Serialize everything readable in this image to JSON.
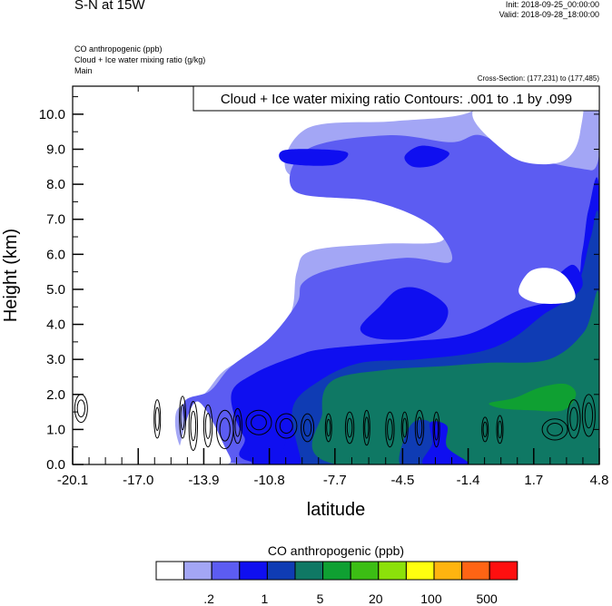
{
  "header": {
    "title": "S-N at 15W",
    "init": "Init: 2018-09-25_00:00:00",
    "valid": "Valid: 2018-09-28_18:00:00",
    "var1": "CO anthropogenic   (ppb)",
    "var2": "Cloud + Ice water mixing ratio   (g/kg)",
    "var3": "Main",
    "cross_section": "Cross-Section: (177,231) to (177,485)"
  },
  "chart_data": {
    "type": "heatmap",
    "title": "",
    "xlabel": "latitude",
    "ylabel": "Height (km)",
    "xlim": [
      -20.1,
      4.8
    ],
    "ylim": [
      0.0,
      10.8
    ],
    "x_ticks": [
      "-20.1",
      "-17.0",
      "-13.9",
      "-10.8",
      "-7.7",
      "-4.5",
      "-1.4",
      "1.7",
      "4.8"
    ],
    "y_ticks": [
      "0.0",
      "1.0",
      "2.0",
      "3.0",
      "4.0",
      "5.0",
      "6.0",
      "7.0",
      "8.0",
      "9.0",
      "10.0"
    ],
    "grid": false,
    "contour_info": "Cloud + Ice water mixing ratio Contours: .001 to .1 by .099",
    "colorbar": {
      "title": "CO anthropogenic  (ppb)",
      "colors": [
        "#ffffff",
        "#a3a6f5",
        "#5c5cf2",
        "#0f0ff0",
        "#0f3cb4",
        "#0f7864",
        "#0fa032",
        "#3cbe14",
        "#8ce10a",
        "#ffff0f",
        "#ffb40f",
        "#ff6414",
        "#ff0f0f"
      ],
      "labels": [
        ".2",
        "1",
        "5",
        "20",
        "100",
        "500"
      ]
    },
    "shading": [
      {
        "level": 1,
        "color": "#a3a6f5",
        "outline": [
          [
            -14.8,
            0.3
          ],
          [
            -15.2,
            1.5
          ],
          [
            -13.9,
            2.0
          ],
          [
            -12.9,
            2.7
          ],
          [
            -11.2,
            3.3
          ],
          [
            -9.8,
            4.3
          ],
          [
            -9.5,
            5.5
          ],
          [
            -8.8,
            6.1
          ],
          [
            -5.5,
            6.3
          ],
          [
            -2.6,
            6.4
          ],
          [
            -3.4,
            7.3
          ],
          [
            -6.2,
            8.0
          ],
          [
            -9.9,
            8.3
          ],
          [
            -9.0,
            9.6
          ],
          [
            -4.9,
            9.8
          ],
          [
            -1.6,
            10.0
          ],
          [
            0.2,
            10.6
          ],
          [
            3.7,
            10.8
          ],
          [
            4.8,
            10.8
          ],
          [
            4.8,
            0.0
          ],
          [
            -12.9,
            0.0
          ]
        ]
      },
      {
        "level": 2,
        "color": "#5c5cf2",
        "outline": [
          [
            -14.5,
            1.0
          ],
          [
            -14.8,
            1.8
          ],
          [
            -13.6,
            2.1
          ],
          [
            -12.6,
            2.8
          ],
          [
            -10.8,
            3.6
          ],
          [
            -9.5,
            4.6
          ],
          [
            -9.2,
            5.2
          ],
          [
            -7.7,
            5.6
          ],
          [
            -4.4,
            5.9
          ],
          [
            -2.2,
            5.8
          ],
          [
            -3.1,
            6.8
          ],
          [
            -5.8,
            7.5
          ],
          [
            -9.6,
            7.8
          ],
          [
            -9.0,
            9.0
          ],
          [
            -5.2,
            9.4
          ],
          [
            -2.2,
            9.2
          ],
          [
            -0.8,
            9.4
          ],
          [
            1.2,
            8.8
          ],
          [
            4.4,
            8.4
          ],
          [
            4.8,
            8.5
          ],
          [
            4.8,
            0.0
          ],
          [
            -11.8,
            0.0
          ]
        ]
      },
      {
        "level": 3,
        "color": "#0f0ff0",
        "outline": [
          [
            -12.0,
            0.8
          ],
          [
            -12.6,
            2.0
          ],
          [
            -11.5,
            2.6
          ],
          [
            -9.5,
            3.1
          ],
          [
            -8.2,
            3.3
          ],
          [
            -4.5,
            3.5
          ],
          [
            -1.5,
            3.7
          ],
          [
            1.0,
            4.4
          ],
          [
            3.5,
            4.9
          ],
          [
            4.0,
            6.1
          ],
          [
            4.3,
            7.3
          ],
          [
            4.8,
            7.7
          ],
          [
            4.8,
            0.0
          ],
          [
            -10.6,
            0.0
          ]
        ]
      },
      {
        "level": 4,
        "color": "#0f3cb4",
        "outline": [
          [
            -9.3,
            0.1
          ],
          [
            -9.7,
            1.6
          ],
          [
            -8.4,
            2.4
          ],
          [
            -6.5,
            2.9
          ],
          [
            -3.8,
            3.0
          ],
          [
            -1.0,
            3.2
          ],
          [
            0.7,
            3.6
          ],
          [
            2.2,
            4.3
          ],
          [
            3.5,
            4.8
          ],
          [
            4.0,
            5.5
          ],
          [
            4.4,
            6.5
          ],
          [
            4.8,
            6.8
          ],
          [
            4.8,
            0.0
          ],
          [
            -9.3,
            0.0
          ]
        ]
      },
      {
        "level": 5,
        "color": "#0f7864",
        "outline": [
          [
            -7.6,
            0.0
          ],
          [
            -8.3,
            1.5
          ],
          [
            -7.8,
            2.4
          ],
          [
            -5.3,
            2.7
          ],
          [
            -2.8,
            2.8
          ],
          [
            -0.5,
            2.9
          ],
          [
            2.4,
            3.0
          ],
          [
            4.1,
            3.8
          ],
          [
            4.8,
            4.8
          ],
          [
            4.8,
            0.0
          ]
        ]
      },
      {
        "level": 6,
        "color": "#0fa032",
        "outline": [
          [
            -0.4,
            1.75
          ],
          [
            0.8,
            1.9
          ],
          [
            2.0,
            2.2
          ],
          [
            3.2,
            2.3
          ],
          [
            3.7,
            2.0
          ],
          [
            3.1,
            1.55
          ],
          [
            1.6,
            1.55
          ],
          [
            0.2,
            1.6
          ]
        ]
      },
      {
        "level": 3,
        "color": "#0f0ff0",
        "outline": [
          [
            -10.2,
            1.1
          ],
          [
            -11.8,
            1.25
          ],
          [
            -11.6,
            0.0
          ],
          [
            -10.8,
            0.0
          ],
          [
            -10.1,
            0.5
          ]
        ]
      },
      {
        "level": 4,
        "color": "#0f3cb4",
        "outline": [
          [
            -4.6,
            0.0
          ],
          [
            -3.5,
            0.0
          ],
          [
            -3.1,
            0.6
          ],
          [
            -3.2,
            1.2
          ],
          [
            -4.0,
            1.2
          ],
          [
            -4.5,
            0.6
          ]
        ]
      },
      {
        "level": 3,
        "color": "#0f0ff0",
        "outline": [
          [
            -3.5,
            0.0
          ],
          [
            -1.4,
            0.0
          ],
          [
            -2.4,
            0.5
          ],
          [
            -2.4,
            1.1
          ],
          [
            -3.2,
            1.2
          ],
          [
            -3.1,
            0.6
          ]
        ]
      },
      {
        "level": 3,
        "color": "#0f0ff0",
        "outline": [
          [
            -6.5,
            3.9
          ],
          [
            -5.6,
            4.5
          ],
          [
            -4.7,
            5.0
          ],
          [
            -3.6,
            5.0
          ],
          [
            -2.4,
            4.5
          ],
          [
            -2.7,
            3.9
          ],
          [
            -4.0,
            3.6
          ],
          [
            -5.8,
            3.6
          ]
        ]
      },
      {
        "level": 3,
        "color": "#0f0ff0",
        "outline": [
          [
            -10.0,
            8.6
          ],
          [
            -10.2,
            8.95
          ],
          [
            -8.6,
            9.0
          ],
          [
            -7.1,
            8.9
          ],
          [
            -7.8,
            8.55
          ]
        ]
      },
      {
        "level": 3,
        "color": "#0f0ff0",
        "outline": [
          [
            -4.4,
            8.8
          ],
          [
            -3.6,
            9.1
          ],
          [
            -2.3,
            8.9
          ],
          [
            -3.0,
            8.55
          ],
          [
            -4.0,
            8.5
          ]
        ]
      },
      {
        "level": 3,
        "color": "#0f0ff0",
        "outline": [
          [
            2.2,
            4.9
          ],
          [
            3.5,
            5.7
          ],
          [
            4.0,
            5.1
          ],
          [
            3.0,
            4.6
          ]
        ]
      },
      {
        "level": 0,
        "color": "#ffffff",
        "outline": [
          [
            -12.8,
            0.0
          ],
          [
            -12.9,
            0.5
          ],
          [
            -14.2,
            1.8
          ],
          [
            -15.0,
            0.6
          ],
          [
            -15.0,
            0.0
          ]
        ]
      },
      {
        "level": 0,
        "color": "#ffffff",
        "outline": [
          [
            1.0,
            4.9
          ],
          [
            2.0,
            4.6
          ],
          [
            3.6,
            4.7
          ],
          [
            3.3,
            5.3
          ],
          [
            2.5,
            5.6
          ],
          [
            1.5,
            5.5
          ]
        ]
      },
      {
        "level": 0,
        "color": "#ffffff",
        "outline": [
          [
            1.5,
            8.6
          ],
          [
            3.2,
            8.7
          ],
          [
            3.9,
            9.5
          ],
          [
            3.7,
            10.8
          ],
          [
            0.2,
            10.8
          ],
          [
            -1.2,
            10.0
          ],
          [
            0.2,
            9.0
          ]
        ]
      }
    ],
    "contours": [
      {
        "cx": -19.7,
        "cy": 1.6,
        "rx": 0.3,
        "ry": 0.4
      },
      {
        "cx": -16.1,
        "cy": 1.3,
        "rx": 0.15,
        "ry": 0.55
      },
      {
        "cx": -14.9,
        "cy": 1.35,
        "rx": 0.15,
        "ry": 0.6
      },
      {
        "cx": -14.4,
        "cy": 1.1,
        "rx": 0.2,
        "ry": 0.7
      },
      {
        "cx": -13.7,
        "cy": 1.1,
        "rx": 0.2,
        "ry": 0.6
      },
      {
        "cx": -12.9,
        "cy": 1.0,
        "rx": 0.4,
        "ry": 0.55
      },
      {
        "cx": -12.3,
        "cy": 1.1,
        "rx": 0.2,
        "ry": 0.5
      },
      {
        "cx": -11.3,
        "cy": 1.2,
        "rx": 0.6,
        "ry": 0.35
      },
      {
        "cx": -10.0,
        "cy": 1.1,
        "rx": 0.5,
        "ry": 0.35
      },
      {
        "cx": -9.0,
        "cy": 1.05,
        "rx": 0.3,
        "ry": 0.4
      },
      {
        "cx": -8.0,
        "cy": 1.05,
        "rx": 0.15,
        "ry": 0.4
      },
      {
        "cx": -7.0,
        "cy": 1.05,
        "rx": 0.2,
        "ry": 0.45
      },
      {
        "cx": -6.2,
        "cy": 1.05,
        "rx": 0.15,
        "ry": 0.5
      },
      {
        "cx": -5.1,
        "cy": 1.0,
        "rx": 0.2,
        "ry": 0.5
      },
      {
        "cx": -4.4,
        "cy": 1.05,
        "rx": 0.15,
        "ry": 0.45
      },
      {
        "cx": -3.7,
        "cy": 1.05,
        "rx": 0.2,
        "ry": 0.5
      },
      {
        "cx": -2.9,
        "cy": 1.0,
        "rx": 0.15,
        "ry": 0.5
      },
      {
        "cx": -0.6,
        "cy": 1.0,
        "rx": 0.15,
        "ry": 0.35
      },
      {
        "cx": 0.1,
        "cy": 1.0,
        "rx": 0.15,
        "ry": 0.4
      },
      {
        "cx": 2.7,
        "cy": 1.0,
        "rx": 0.6,
        "ry": 0.3
      },
      {
        "cx": 3.6,
        "cy": 1.3,
        "rx": 0.3,
        "ry": 0.55
      },
      {
        "cx": 4.3,
        "cy": 1.4,
        "rx": 0.3,
        "ry": 0.6
      }
    ]
  }
}
